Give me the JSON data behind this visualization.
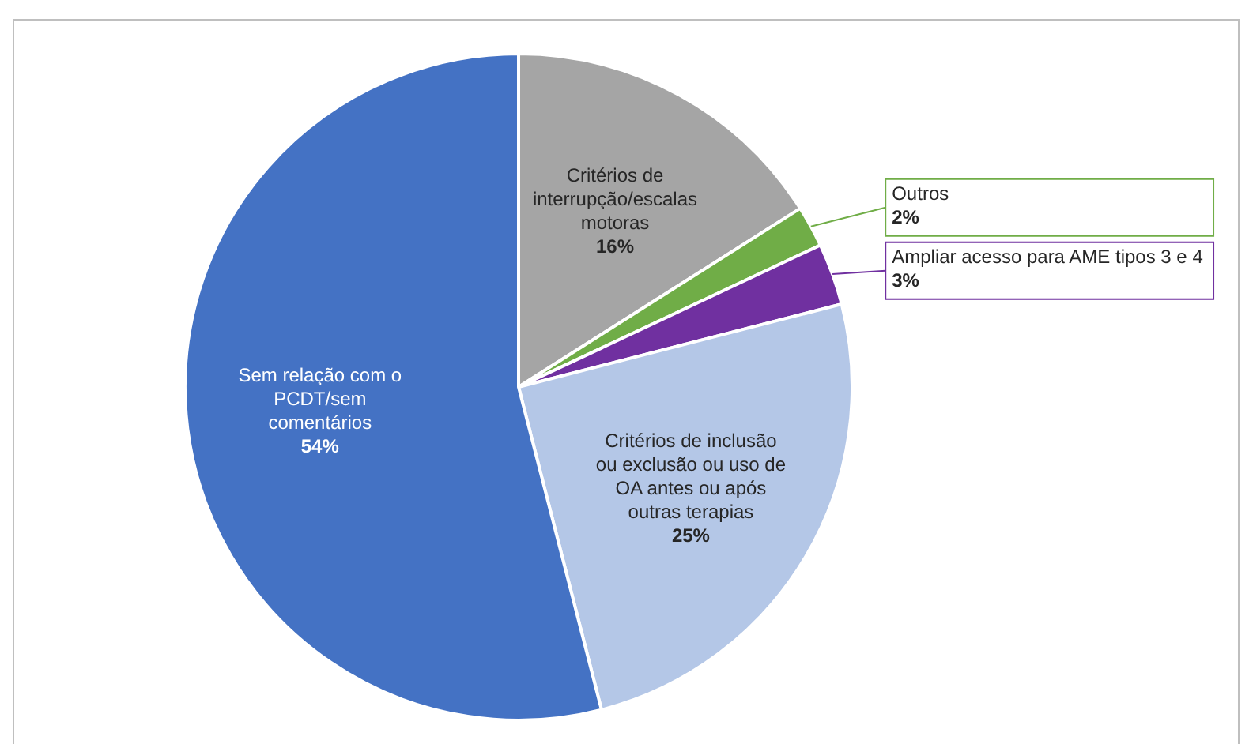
{
  "chart_data": {
    "type": "pie",
    "categories": [
      "Critérios de interrupção/escalas motoras",
      "Outros",
      "Ampliar acesso para AME tipos 3 e 4",
      "Critérios de inclusão ou exclusão ou uso de OA antes ou após outras terapias",
      "Sem relação com o PCDT/sem comentários"
    ],
    "values": [
      16,
      2,
      3,
      25,
      54
    ],
    "value_labels": [
      "16%",
      "2%",
      "3%",
      "25%",
      "54%"
    ],
    "colors": [
      "#a5a5a5",
      "#70ad47",
      "#7030a0",
      "#b4c7e7",
      "#4472c4"
    ],
    "legend": false
  }
}
